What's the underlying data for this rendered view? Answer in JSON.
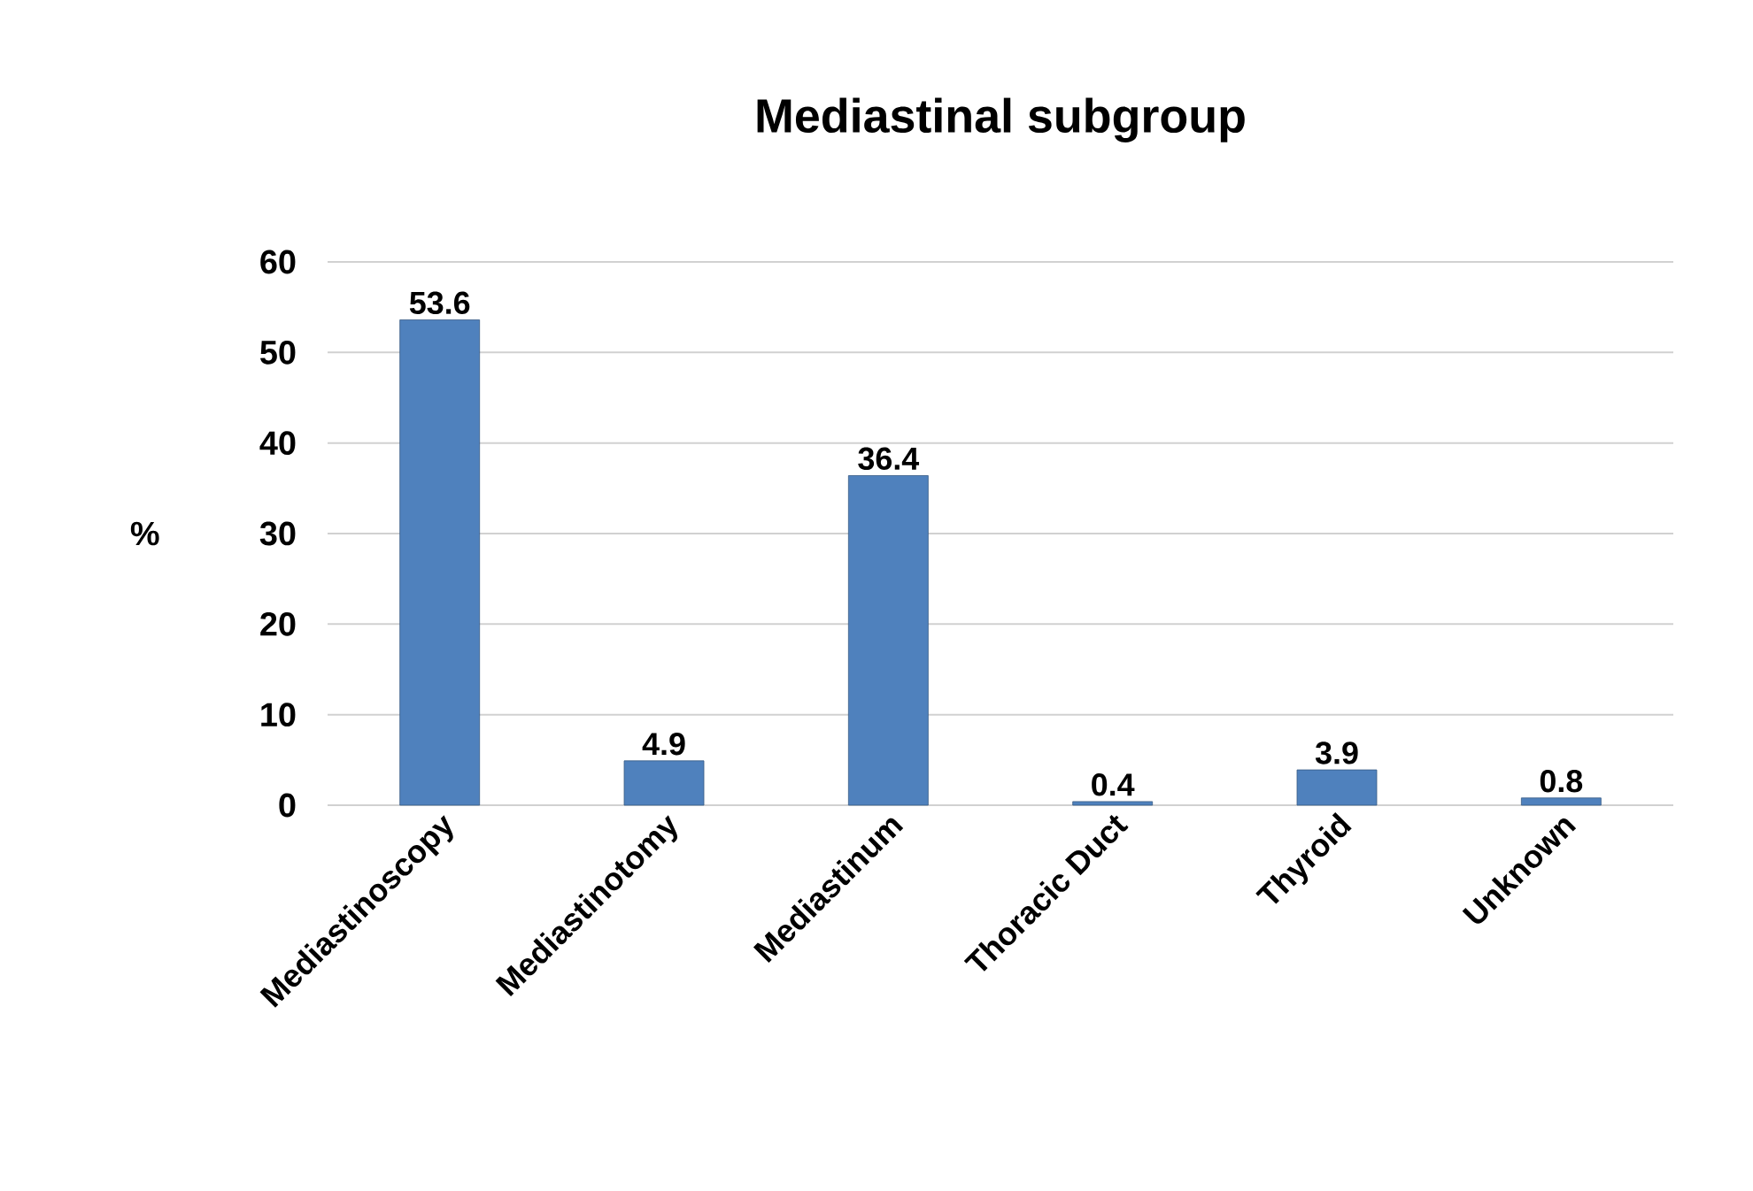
{
  "chart_data": {
    "type": "bar",
    "title": "Mediastinal subgroup",
    "ylabel": "%",
    "categories": [
      "Mediastinoscopy",
      "Mediastinotomy",
      "Mediastinum",
      "Thoracic Duct",
      "Thyroid",
      "Unknown"
    ],
    "values": [
      53.6,
      4.9,
      36.4,
      0.4,
      3.9,
      0.8
    ],
    "color": "#4f81bd",
    "ylim": [
      0,
      60
    ],
    "yticks": [
      0,
      10,
      20,
      30,
      40,
      50,
      60
    ],
    "grid": "y",
    "data_labels": true
  }
}
